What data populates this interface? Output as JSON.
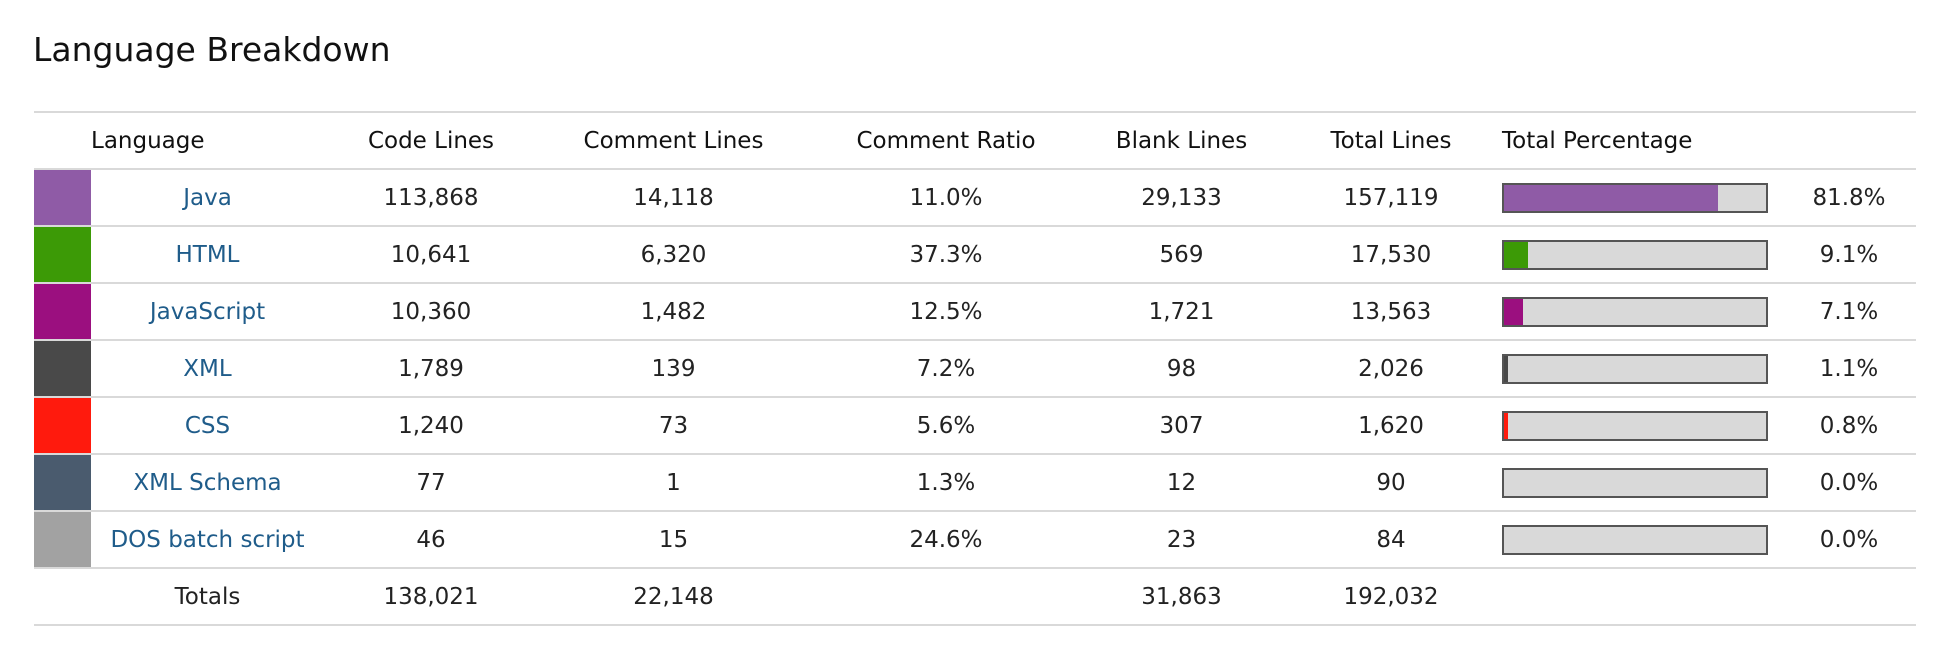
{
  "title": "Language Breakdown",
  "headers": {
    "language": "Language",
    "code_lines": "Code Lines",
    "comment_lines": "Comment Lines",
    "comment_ratio": "Comment Ratio",
    "blank_lines": "Blank Lines",
    "total_lines": "Total Lines",
    "total_percentage": "Total Percentage"
  },
  "rows": [
    {
      "language": "Java",
      "color": "#8f5ba6",
      "code": "113,868",
      "comments": "14,118",
      "ratio": "11.0%",
      "blank": "29,133",
      "total": "157,119",
      "pct_label": "81.8%",
      "pct": 81.8
    },
    {
      "language": "HTML",
      "color": "#3c9a06",
      "code": "10,641",
      "comments": "6,320",
      "ratio": "37.3%",
      "blank": "569",
      "total": "17,530",
      "pct_label": "9.1%",
      "pct": 9.1
    },
    {
      "language": "JavaScript",
      "color": "#9b0f7f",
      "code": "10,360",
      "comments": "1,482",
      "ratio": "12.5%",
      "blank": "1,721",
      "total": "13,563",
      "pct_label": "7.1%",
      "pct": 7.1
    },
    {
      "language": "XML",
      "color": "#494949",
      "code": "1,789",
      "comments": "139",
      "ratio": "7.2%",
      "blank": "98",
      "total": "2,026",
      "pct_label": "1.1%",
      "pct": 1.1
    },
    {
      "language": "CSS",
      "color": "#ff1a0d",
      "code": "1,240",
      "comments": "73",
      "ratio": "5.6%",
      "blank": "307",
      "total": "1,620",
      "pct_label": "0.8%",
      "pct": 0.8
    },
    {
      "language": "XML Schema",
      "color": "#4a5b6e",
      "code": "77",
      "comments": "1",
      "ratio": "1.3%",
      "blank": "12",
      "total": "90",
      "pct_label": "0.0%",
      "pct": 0.0
    },
    {
      "language": "DOS batch script",
      "color": "#a2a2a2",
      "code": "46",
      "comments": "15",
      "ratio": "24.6%",
      "blank": "23",
      "total": "84",
      "pct_label": "0.0%",
      "pct": 0.0
    }
  ],
  "totals": {
    "label": "Totals",
    "code": "138,021",
    "comments": "22,148",
    "ratio": "",
    "blank": "31,863",
    "total": "192,032"
  }
}
